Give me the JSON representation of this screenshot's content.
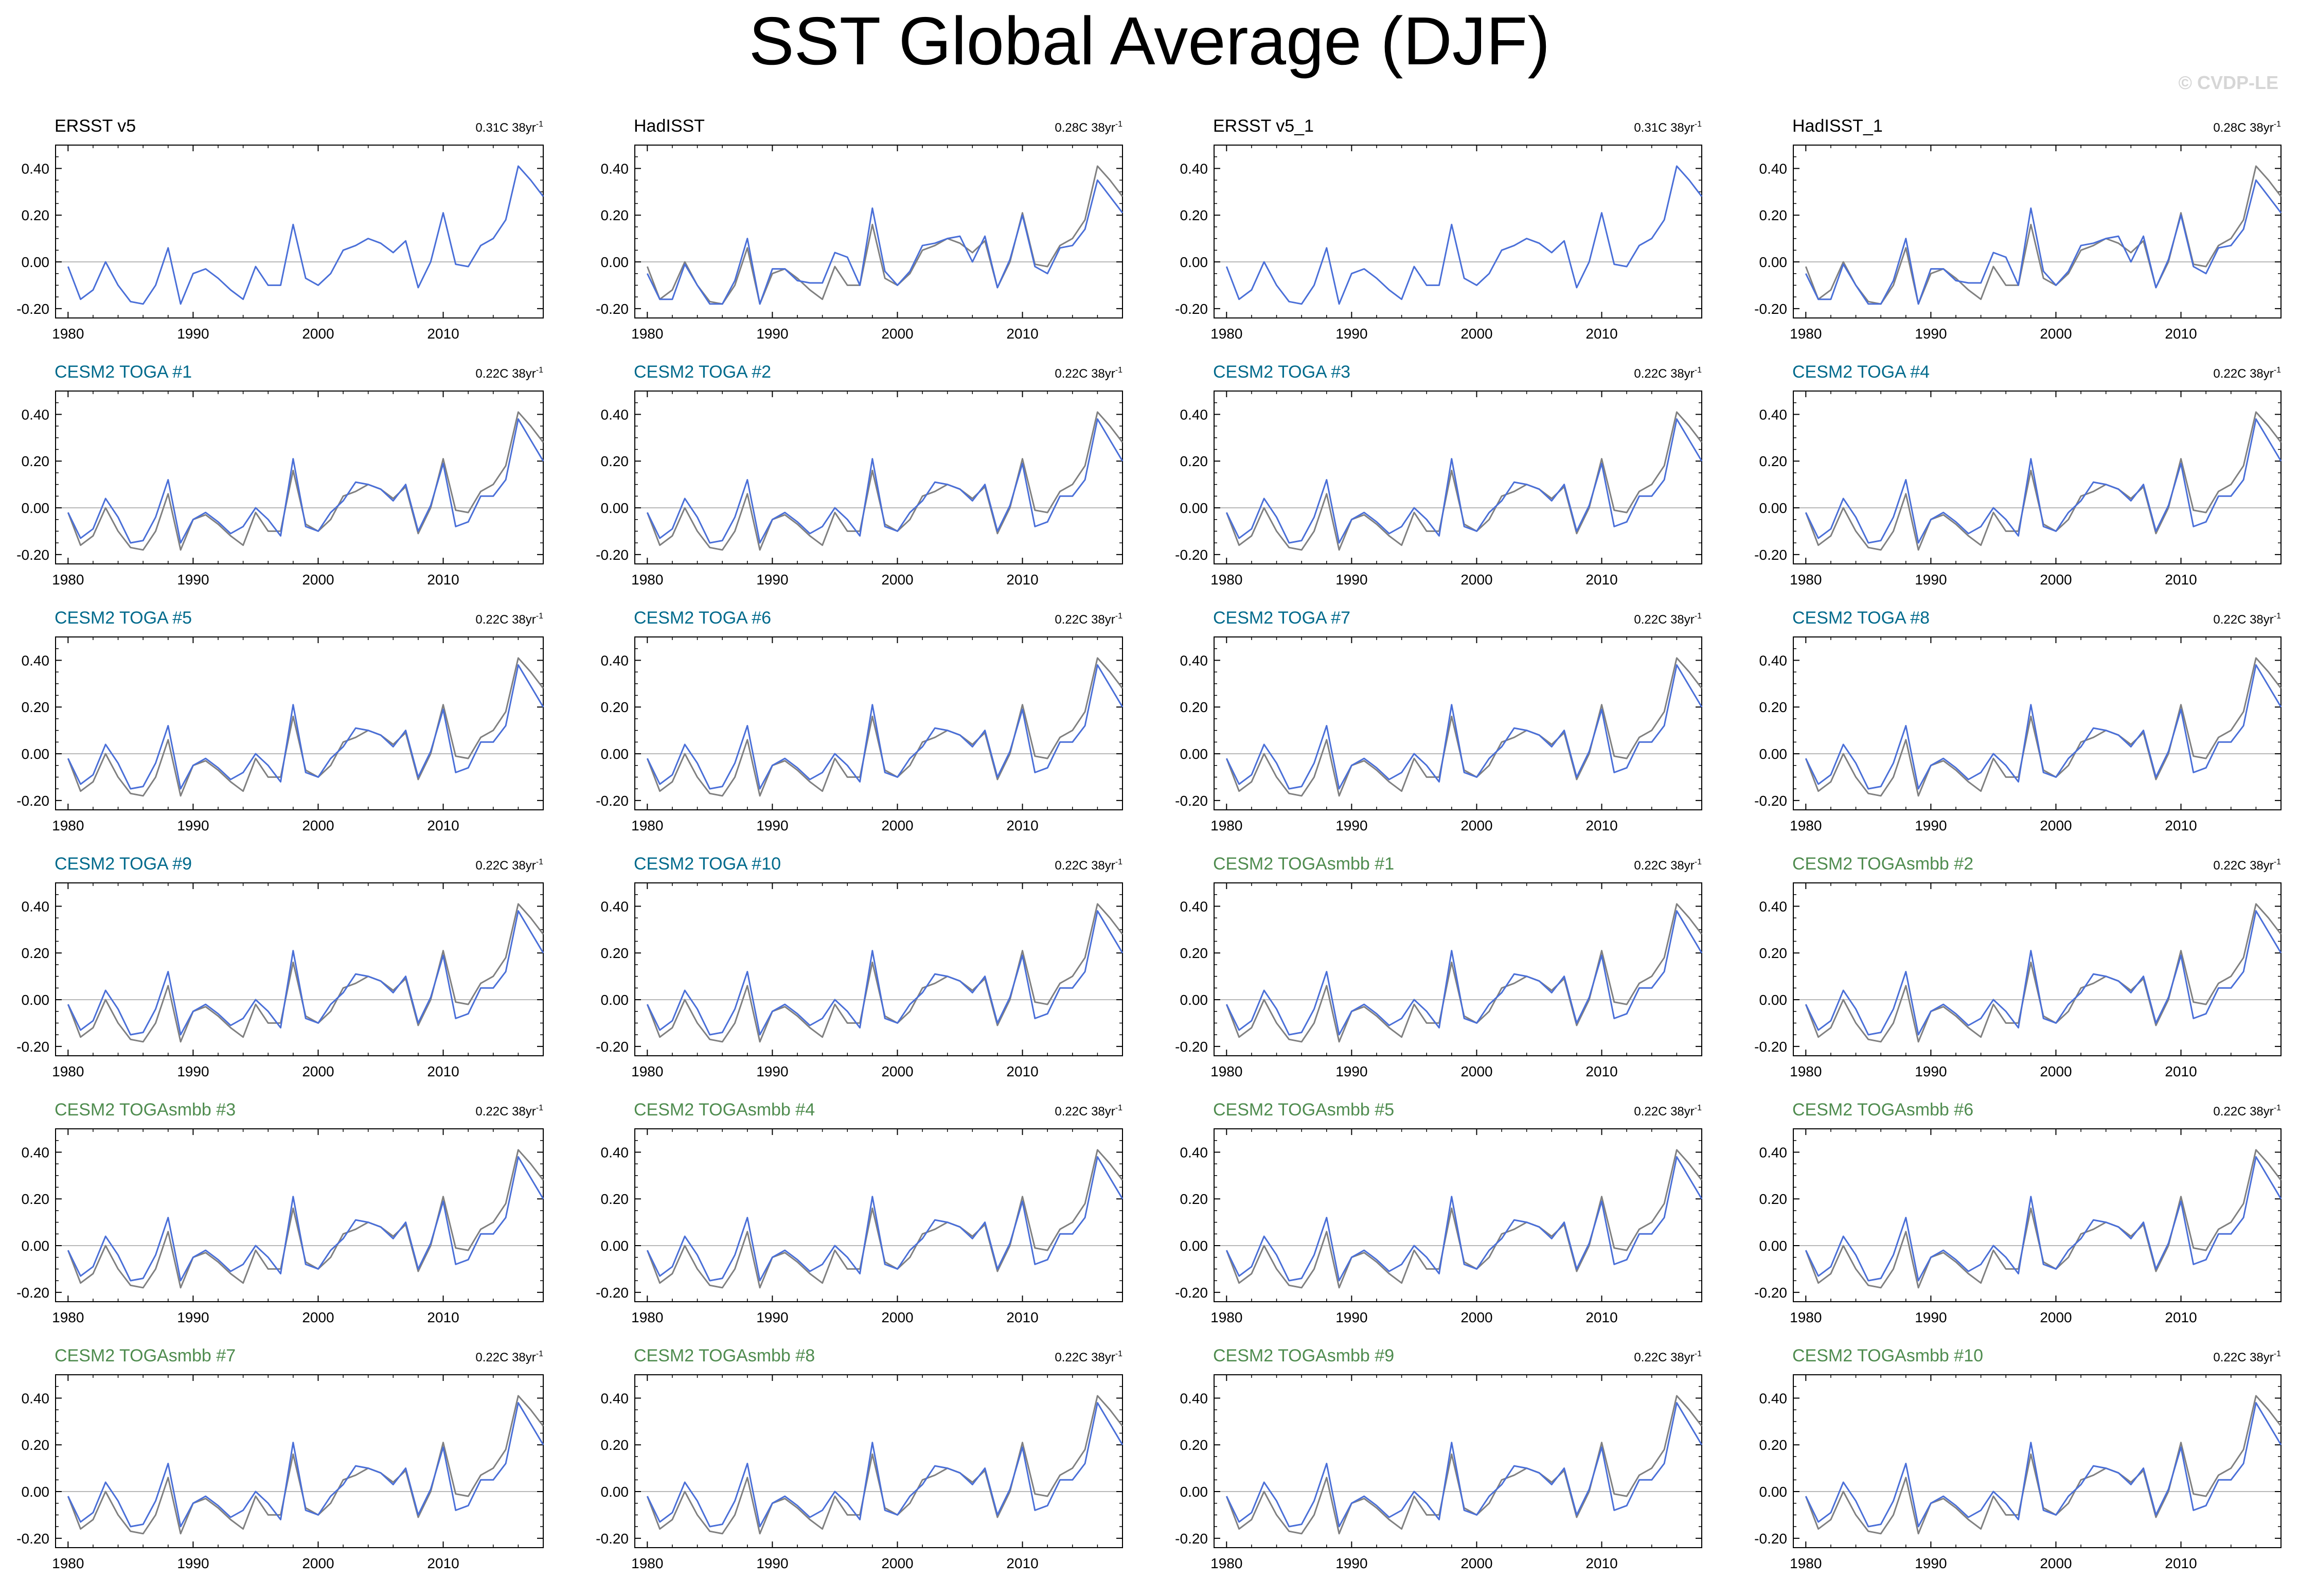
{
  "title": "SST Global Average (DJF)",
  "watermark": "© CVDP-LE",
  "colors": {
    "observed": "#808080",
    "model": "#4a6fd8",
    "toga_label": "#006a8c",
    "smbb_label": "#4f8c4f",
    "obs_label": "#000000"
  },
  "chart_data": {
    "type": "line",
    "xlim": [
      1979,
      2018
    ],
    "ylim": [
      -0.24,
      0.5
    ],
    "x_ticks": [
      1980,
      1990,
      2000,
      2010
    ],
    "y_ticks": [
      -0.2,
      0.0,
      0.2,
      0.4
    ],
    "y_tick_labels": [
      "-0.20",
      "0.00",
      "0.20",
      "0.40"
    ],
    "grid": false,
    "zero_line": true,
    "x": [
      1980,
      1981,
      1982,
      1983,
      1984,
      1985,
      1986,
      1987,
      1988,
      1989,
      1990,
      1991,
      1992,
      1993,
      1994,
      1995,
      1996,
      1997,
      1998,
      1999,
      2000,
      2001,
      2002,
      2003,
      2004,
      2005,
      2006,
      2007,
      2008,
      2009,
      2010,
      2011,
      2012,
      2013,
      2014,
      2015,
      2016,
      2017,
      2018
    ],
    "observed_reference": [
      -0.02,
      -0.16,
      -0.12,
      0.0,
      -0.1,
      -0.17,
      -0.18,
      -0.1,
      0.06,
      -0.18,
      -0.05,
      -0.03,
      -0.07,
      -0.12,
      -0.16,
      -0.02,
      -0.1,
      -0.1,
      0.16,
      -0.07,
      -0.1,
      -0.05,
      0.05,
      0.07,
      0.1,
      0.08,
      0.04,
      0.09,
      -0.11,
      0.0,
      0.21,
      -0.01,
      -0.02,
      0.07,
      0.1,
      0.18,
      0.41,
      0.35,
      0.28
    ],
    "had_observed": [
      -0.05,
      -0.16,
      -0.16,
      -0.01,
      -0.1,
      -0.18,
      -0.18,
      -0.08,
      0.1,
      -0.18,
      -0.03,
      -0.03,
      -0.08,
      -0.09,
      -0.09,
      0.04,
      0.02,
      -0.1,
      0.23,
      -0.04,
      -0.1,
      -0.04,
      0.07,
      0.08,
      0.1,
      0.11,
      0.0,
      0.11,
      -0.11,
      0.01,
      0.2,
      -0.02,
      -0.05,
      0.06,
      0.07,
      0.14,
      0.35,
      0.28,
      0.21
    ],
    "ensemble_model": [
      -0.02,
      -0.13,
      -0.09,
      0.04,
      -0.04,
      -0.15,
      -0.14,
      -0.04,
      0.12,
      -0.15,
      -0.05,
      -0.02,
      -0.06,
      -0.11,
      -0.08,
      0.0,
      -0.05,
      -0.12,
      0.21,
      -0.08,
      -0.1,
      -0.02,
      0.03,
      0.11,
      0.1,
      0.08,
      0.03,
      0.1,
      -0.1,
      0.01,
      0.19,
      -0.08,
      -0.06,
      0.05,
      0.05,
      0.12,
      0.38,
      0.29,
      0.2
    ],
    "panels": [
      {
        "label": "ERSST v5",
        "trend": "0.31C 38yr",
        "group": "obs",
        "series": [
          {
            "values_ref": "observed_reference",
            "color": "#4a6fd8"
          }
        ]
      },
      {
        "label": "HadISST",
        "trend": "0.28C 38yr",
        "group": "obs",
        "series": [
          {
            "values_ref": "observed_reference",
            "color": "#808080"
          },
          {
            "values_ref": "had_observed",
            "color": "#4a6fd8"
          }
        ]
      },
      {
        "label": "ERSST v5_1",
        "trend": "0.31C 38yr",
        "group": "obs",
        "series": [
          {
            "values_ref": "observed_reference",
            "color": "#4a6fd8"
          }
        ]
      },
      {
        "label": "HadISST_1",
        "trend": "0.28C 38yr",
        "group": "obs",
        "series": [
          {
            "values_ref": "observed_reference",
            "color": "#808080"
          },
          {
            "values_ref": "had_observed",
            "color": "#4a6fd8"
          }
        ]
      },
      {
        "label": "CESM2 TOGA #1",
        "trend": "0.22C 38yr",
        "group": "toga",
        "series": [
          {
            "values_ref": "observed_reference",
            "color": "#808080"
          },
          {
            "values_ref": "ensemble_model",
            "color": "#4a6fd8"
          }
        ]
      },
      {
        "label": "CESM2 TOGA #2",
        "trend": "0.22C 38yr",
        "group": "toga",
        "series": [
          {
            "values_ref": "observed_reference",
            "color": "#808080"
          },
          {
            "values_ref": "ensemble_model",
            "color": "#4a6fd8"
          }
        ]
      },
      {
        "label": "CESM2 TOGA #3",
        "trend": "0.22C 38yr",
        "group": "toga",
        "series": [
          {
            "values_ref": "observed_reference",
            "color": "#808080"
          },
          {
            "values_ref": "ensemble_model",
            "color": "#4a6fd8"
          }
        ]
      },
      {
        "label": "CESM2 TOGA #4",
        "trend": "0.22C 38yr",
        "group": "toga",
        "series": [
          {
            "values_ref": "observed_reference",
            "color": "#808080"
          },
          {
            "values_ref": "ensemble_model",
            "color": "#4a6fd8"
          }
        ]
      },
      {
        "label": "CESM2 TOGA #5",
        "trend": "0.22C 38yr",
        "group": "toga",
        "series": [
          {
            "values_ref": "observed_reference",
            "color": "#808080"
          },
          {
            "values_ref": "ensemble_model",
            "color": "#4a6fd8"
          }
        ]
      },
      {
        "label": "CESM2 TOGA #6",
        "trend": "0.22C 38yr",
        "group": "toga",
        "series": [
          {
            "values_ref": "observed_reference",
            "color": "#808080"
          },
          {
            "values_ref": "ensemble_model",
            "color": "#4a6fd8"
          }
        ]
      },
      {
        "label": "CESM2 TOGA #7",
        "trend": "0.22C 38yr",
        "group": "toga",
        "series": [
          {
            "values_ref": "observed_reference",
            "color": "#808080"
          },
          {
            "values_ref": "ensemble_model",
            "color": "#4a6fd8"
          }
        ]
      },
      {
        "label": "CESM2 TOGA #8",
        "trend": "0.22C 38yr",
        "group": "toga",
        "series": [
          {
            "values_ref": "observed_reference",
            "color": "#808080"
          },
          {
            "values_ref": "ensemble_model",
            "color": "#4a6fd8"
          }
        ]
      },
      {
        "label": "CESM2 TOGA #9",
        "trend": "0.22C 38yr",
        "group": "toga",
        "series": [
          {
            "values_ref": "observed_reference",
            "color": "#808080"
          },
          {
            "values_ref": "ensemble_model",
            "color": "#4a6fd8"
          }
        ]
      },
      {
        "label": "CESM2 TOGA #10",
        "trend": "0.22C 38yr",
        "group": "toga",
        "series": [
          {
            "values_ref": "observed_reference",
            "color": "#808080"
          },
          {
            "values_ref": "ensemble_model",
            "color": "#4a6fd8"
          }
        ]
      },
      {
        "label": "CESM2 TOGAsmbb #1",
        "trend": "0.22C 38yr",
        "group": "smbb",
        "series": [
          {
            "values_ref": "observed_reference",
            "color": "#808080"
          },
          {
            "values_ref": "ensemble_model",
            "color": "#4a6fd8"
          }
        ]
      },
      {
        "label": "CESM2 TOGAsmbb #2",
        "trend": "0.22C 38yr",
        "group": "smbb",
        "series": [
          {
            "values_ref": "observed_reference",
            "color": "#808080"
          },
          {
            "values_ref": "ensemble_model",
            "color": "#4a6fd8"
          }
        ]
      },
      {
        "label": "CESM2 TOGAsmbb #3",
        "trend": "0.22C 38yr",
        "group": "smbb",
        "series": [
          {
            "values_ref": "observed_reference",
            "color": "#808080"
          },
          {
            "values_ref": "ensemble_model",
            "color": "#4a6fd8"
          }
        ]
      },
      {
        "label": "CESM2 TOGAsmbb #4",
        "trend": "0.22C 38yr",
        "group": "smbb",
        "series": [
          {
            "values_ref": "observed_reference",
            "color": "#808080"
          },
          {
            "values_ref": "ensemble_model",
            "color": "#4a6fd8"
          }
        ]
      },
      {
        "label": "CESM2 TOGAsmbb #5",
        "trend": "0.22C 38yr",
        "group": "smbb",
        "series": [
          {
            "values_ref": "observed_reference",
            "color": "#808080"
          },
          {
            "values_ref": "ensemble_model",
            "color": "#4a6fd8"
          }
        ]
      },
      {
        "label": "CESM2 TOGAsmbb #6",
        "trend": "0.22C 38yr",
        "group": "smbb",
        "series": [
          {
            "values_ref": "observed_reference",
            "color": "#808080"
          },
          {
            "values_ref": "ensemble_model",
            "color": "#4a6fd8"
          }
        ]
      },
      {
        "label": "CESM2 TOGAsmbb #7",
        "trend": "0.22C 38yr",
        "group": "smbb",
        "series": [
          {
            "values_ref": "observed_reference",
            "color": "#808080"
          },
          {
            "values_ref": "ensemble_model",
            "color": "#4a6fd8"
          }
        ]
      },
      {
        "label": "CESM2 TOGAsmbb #8",
        "trend": "0.22C 38yr",
        "group": "smbb",
        "series": [
          {
            "values_ref": "observed_reference",
            "color": "#808080"
          },
          {
            "values_ref": "ensemble_model",
            "color": "#4a6fd8"
          }
        ]
      },
      {
        "label": "CESM2 TOGAsmbb #9",
        "trend": "0.22C 38yr",
        "group": "smbb",
        "series": [
          {
            "values_ref": "observed_reference",
            "color": "#808080"
          },
          {
            "values_ref": "ensemble_model",
            "color": "#4a6fd8"
          }
        ]
      },
      {
        "label": "CESM2 TOGAsmbb #10",
        "trend": "0.22C 38yr",
        "group": "smbb",
        "series": [
          {
            "values_ref": "observed_reference",
            "color": "#808080"
          },
          {
            "values_ref": "ensemble_model",
            "color": "#4a6fd8"
          }
        ]
      }
    ]
  }
}
